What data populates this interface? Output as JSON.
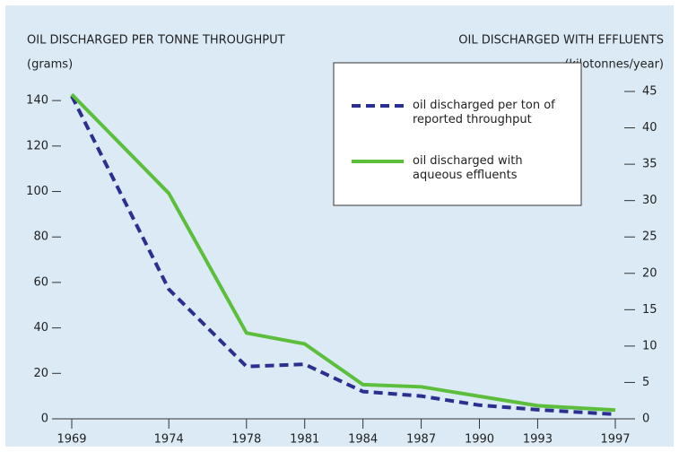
{
  "chart_data": {
    "type": "line",
    "title": "OIL DISCHARGED PER TONNE THROUGHPUT",
    "y_label": "(grams)",
    "y2_title": "OIL DISCHARGED WITH EFFLUENTS",
    "y2_label": "(kilotonnes/year)",
    "x": [
      1969,
      1974,
      1978,
      1981,
      1984,
      1987,
      1990,
      1993,
      1997
    ],
    "xlim": [
      1969,
      1997
    ],
    "xticks": [
      1969,
      1974,
      1978,
      1981,
      1984,
      1987,
      1990,
      1993,
      1997
    ],
    "ylim": [
      0,
      144
    ],
    "yticks": [
      0,
      20,
      40,
      60,
      80,
      100,
      120,
      140
    ],
    "y2lim": [
      0,
      45
    ],
    "y2ticks": [
      0,
      5,
      10,
      15,
      20,
      25,
      30,
      35,
      40,
      45
    ],
    "series": [
      {
        "name": "oil discharged per ton of reported throughput",
        "color": "#2b2f8f",
        "style": "dashed",
        "axis": "y",
        "values": [
          142,
          57,
          23,
          24,
          12,
          10,
          6,
          4,
          2
        ]
      },
      {
        "name": "oil discharged with aqueous effluents",
        "color": "#5cbf3c",
        "style": "solid",
        "axis": "y2",
        "values": [
          44.6,
          31,
          11.8,
          10.3,
          4.7,
          4.4,
          3.1,
          1.8,
          1.2
        ]
      }
    ]
  }
}
